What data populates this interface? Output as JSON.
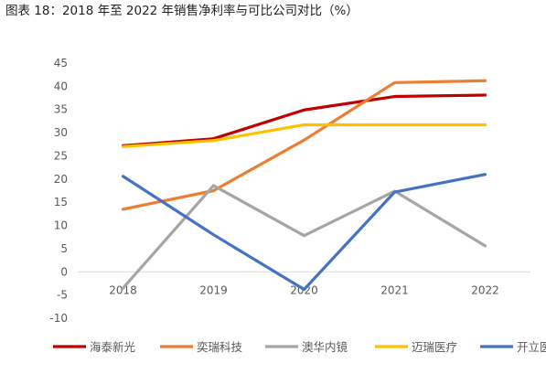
{
  "figure_title": "图表 18：2018 年至 2022 年销售净利率与可比公司对比（%）",
  "chart_data": {
    "type": "line",
    "categories": [
      "2018",
      "2019",
      "2020",
      "2021",
      "2022"
    ],
    "ylim": [
      -10,
      45
    ],
    "yticks": [
      -10,
      -5,
      0,
      5,
      10,
      15,
      20,
      25,
      30,
      35,
      40,
      45
    ],
    "grid": false,
    "legend_position": "bottom",
    "series": [
      {
        "name": "海泰新光",
        "color": "#C00000",
        "values": [
          27.2,
          28.7,
          34.9,
          37.8,
          38.1
        ]
      },
      {
        "name": "奕瑞科技",
        "color": "#ED7D31",
        "values": [
          13.5,
          17.5,
          28.4,
          40.8,
          41.2
        ]
      },
      {
        "name": "澳华内镜",
        "color": "#A5A5A5",
        "values": [
          -3.5,
          18.6,
          7.8,
          17.4,
          5.6
        ]
      },
      {
        "name": "迈瑞医疗",
        "color": "#FFC000",
        "values": [
          27.0,
          28.3,
          31.7,
          31.7,
          31.7
        ]
      },
      {
        "name": "开立医疗",
        "color": "#4472C4",
        "values": [
          20.6,
          8.0,
          -3.8,
          17.2,
          21.0
        ]
      }
    ]
  }
}
